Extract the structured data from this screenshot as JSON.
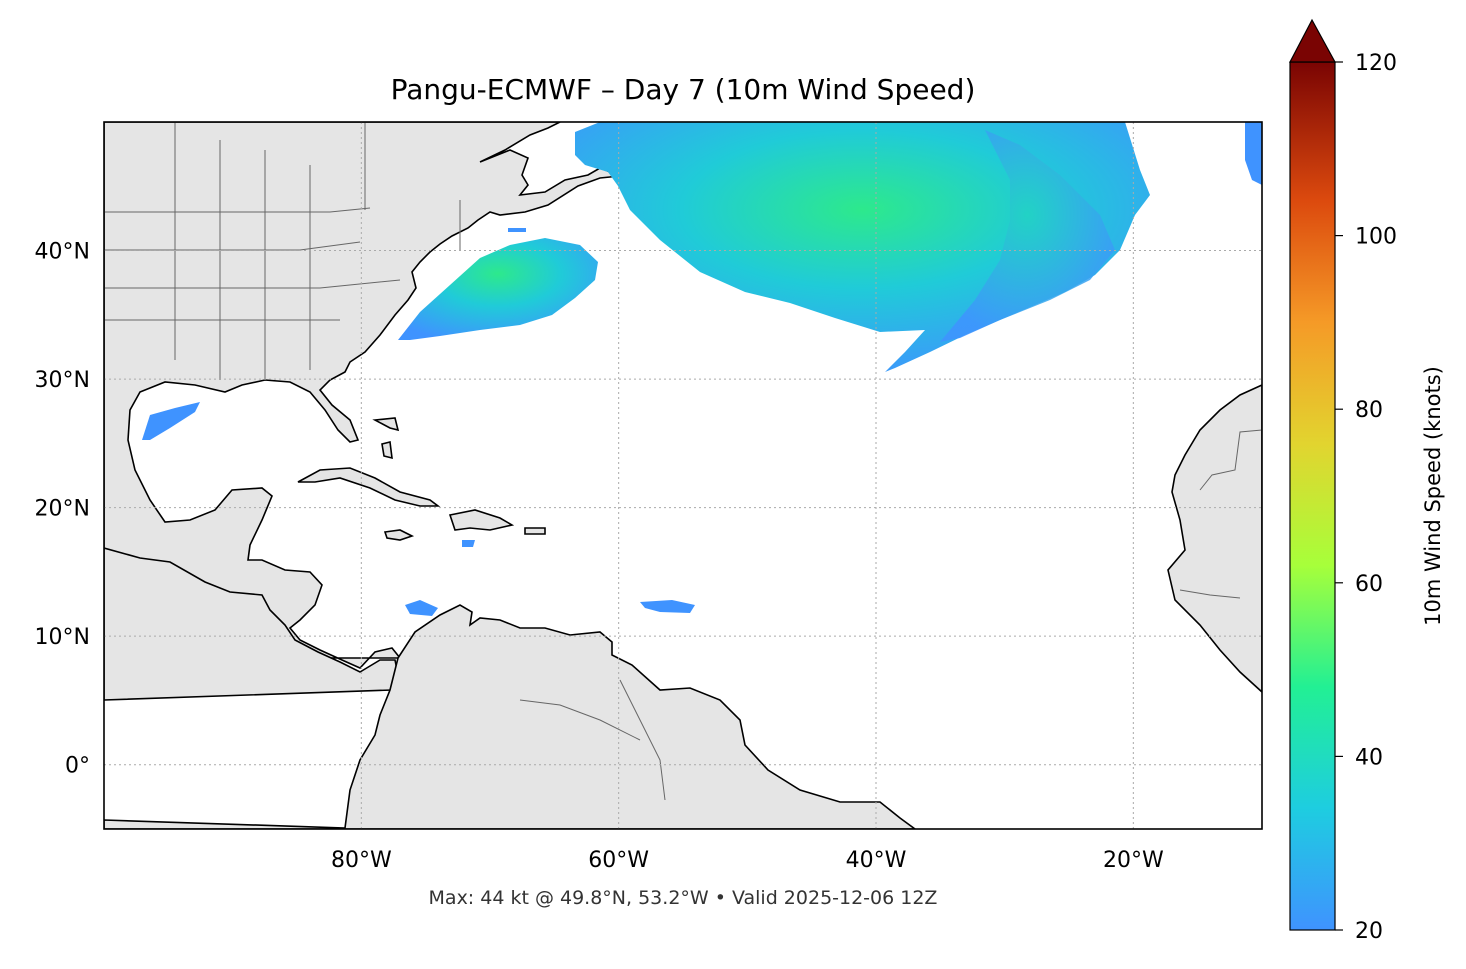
{
  "map": {
    "title": "Pangu-ECMWF – Day 7 (10m Wind Speed)",
    "footer": "Max: 44 kt @ 49.8°N, 53.2°W • Valid 2025-12-06 12Z",
    "extent": {
      "lon_min": -100,
      "lon_max": -10,
      "lat_min": -5,
      "lat_max": 50
    },
    "lat_ticks": [
      {
        "value": 40,
        "label": "40°N"
      },
      {
        "value": 30,
        "label": "30°N"
      },
      {
        "value": 20,
        "label": "20°N"
      },
      {
        "value": 10,
        "label": "10°N"
      },
      {
        "value": 0,
        "label": "0°"
      }
    ],
    "lon_ticks": [
      {
        "value": -80,
        "label": "80°W"
      },
      {
        "value": -60,
        "label": "60°W"
      },
      {
        "value": -40,
        "label": "40°W"
      },
      {
        "value": -20,
        "label": "20°W"
      }
    ],
    "land_color": "#e5e5e5",
    "ocean_color": "#ffffff"
  },
  "colorbar": {
    "label": "10m Wind Speed (knots)",
    "min": 20,
    "max": 120,
    "extend": "max",
    "ticks": [
      "20",
      "40",
      "60",
      "80",
      "100",
      "120"
    ],
    "colormap": "turbo",
    "stops": [
      "#3f93ff",
      "#1ecde0",
      "#22f094",
      "#a7ff3a",
      "#f5c335",
      "#f56a18",
      "#c92d05",
      "#7a0403"
    ]
  }
}
